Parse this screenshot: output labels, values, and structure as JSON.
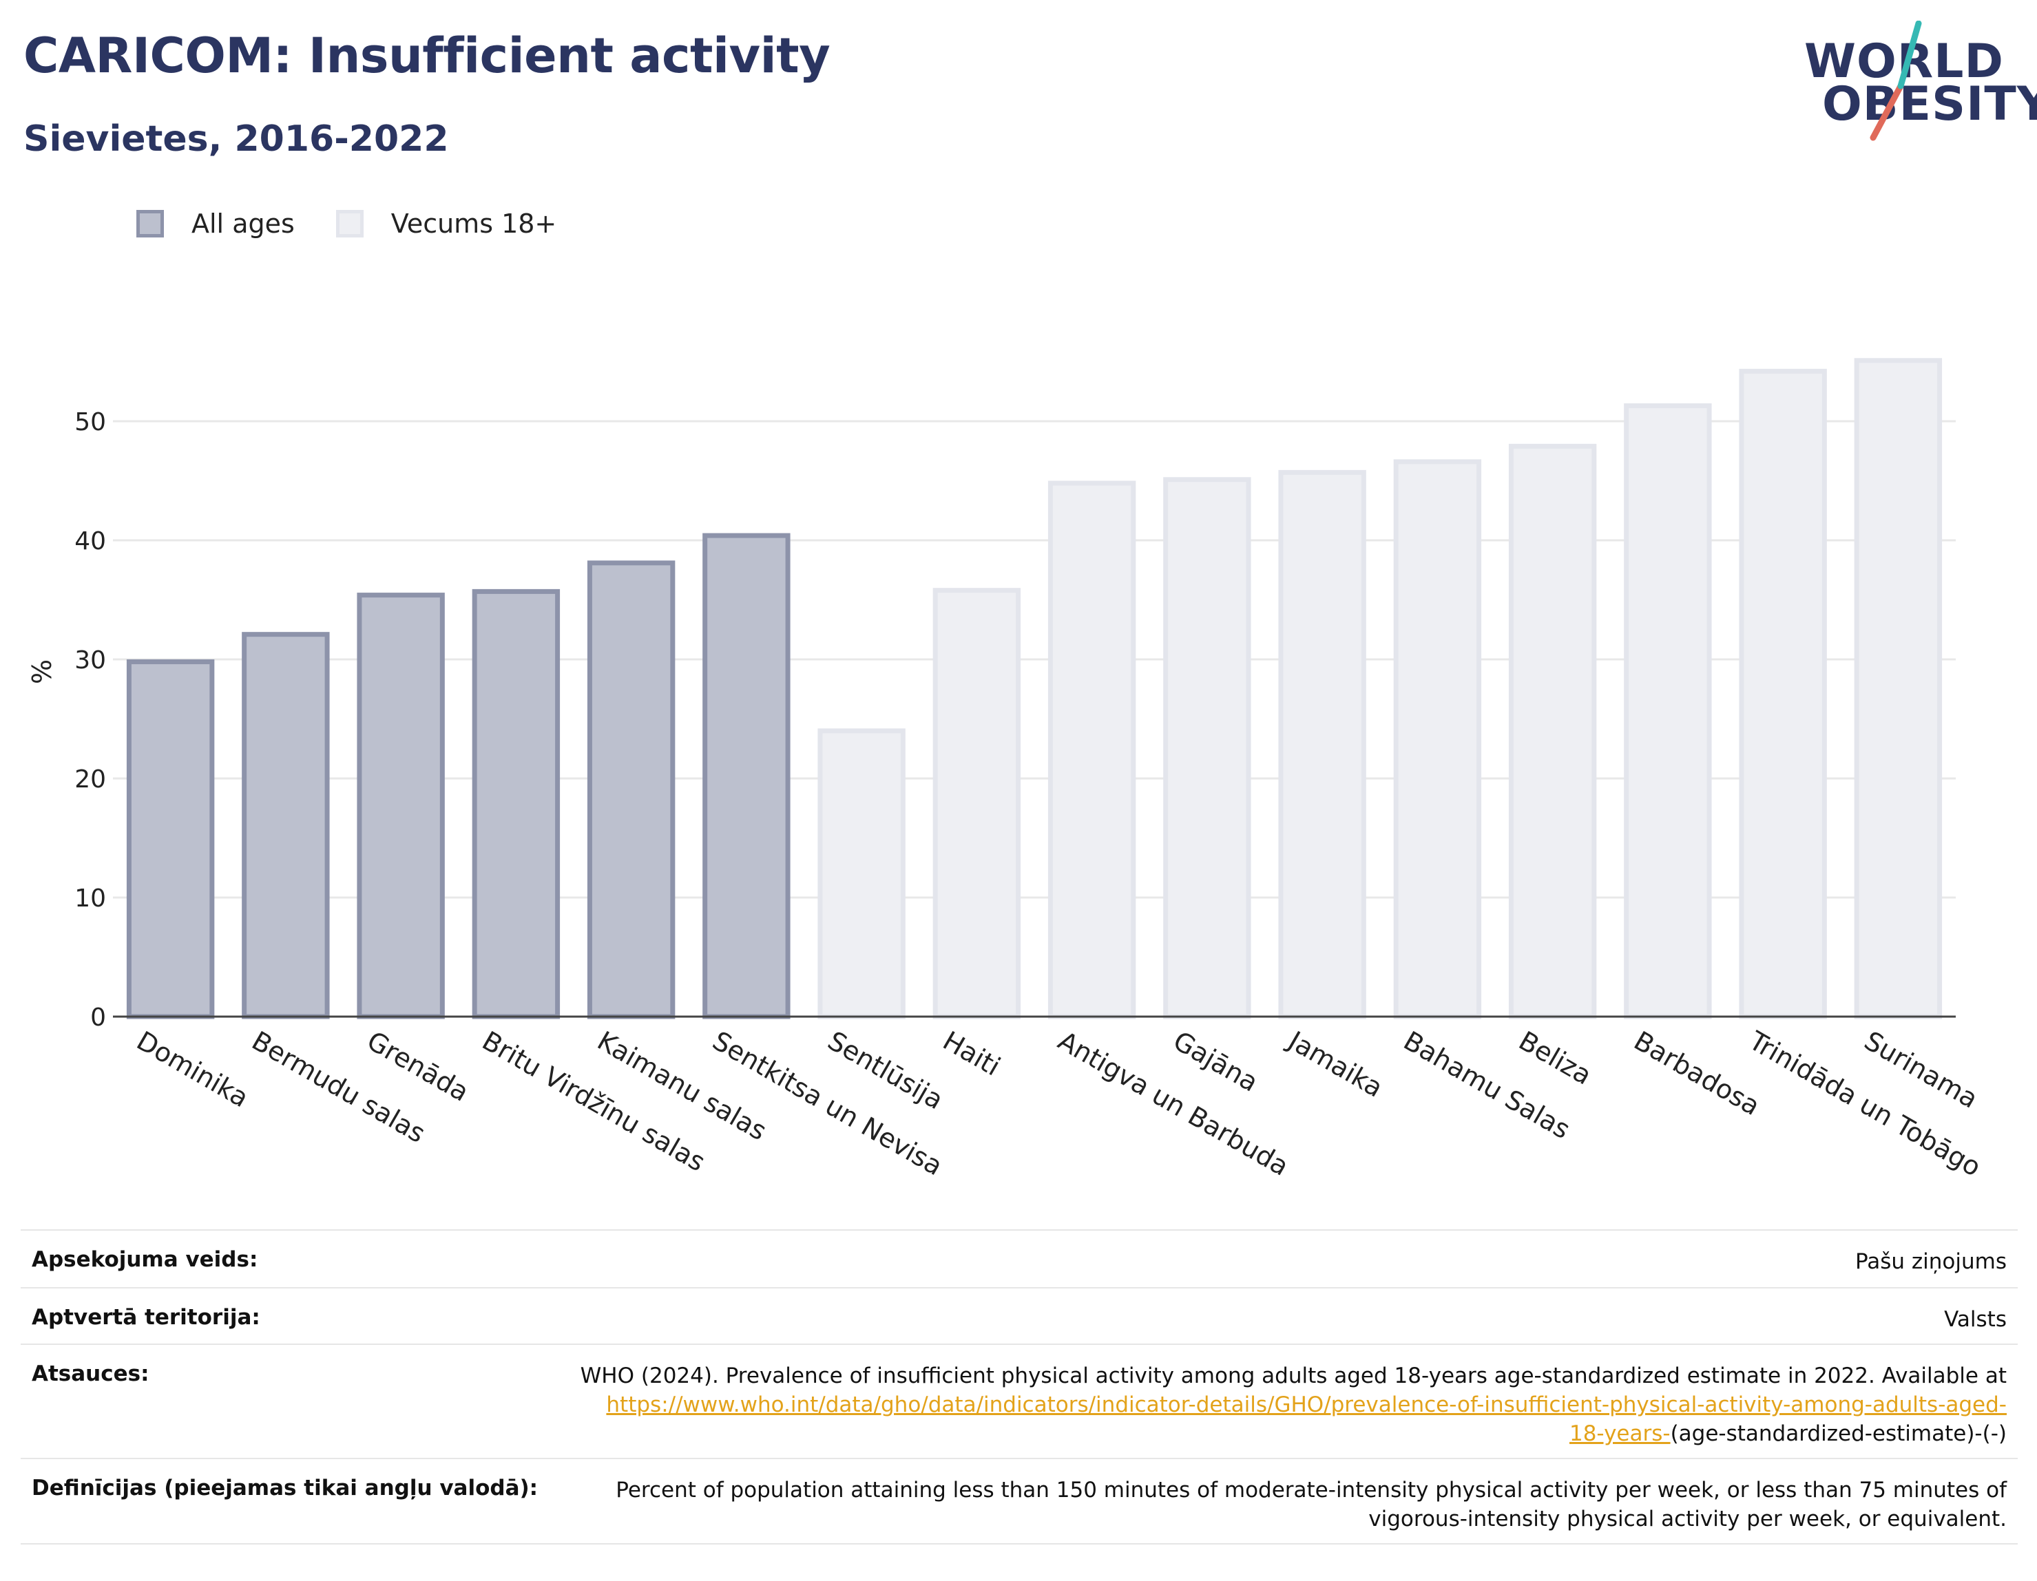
{
  "header": {
    "title": "CARICOM: Insufficient activity",
    "subtitle": "Sievietes, 2016-2022"
  },
  "logo": {
    "line1": "WORLD",
    "line2": "OBESITY"
  },
  "legend": [
    {
      "label": "All ages",
      "color": "#bcc0ce"
    },
    {
      "label": "Vecums 18+",
      "color": "#eeeff3"
    }
  ],
  "chart_data": {
    "type": "bar",
    "title": "CARICOM: Insufficient activity",
    "subtitle": "Sievietes, 2016-2022",
    "xlabel": "",
    "ylabel": "%",
    "ylim": [
      0,
      57
    ],
    "yticks": [
      0,
      10,
      20,
      30,
      40,
      50
    ],
    "grid": true,
    "legend_position": "top-left",
    "categories": [
      "Dominika",
      "Bermudu salas",
      "Grenāda",
      "Britu Virdžīnu salas",
      "Kaimanu salas",
      "Sentkitsa un Nevisa",
      "Sentlūsija",
      "Haiti",
      "Antigva un Barbuda",
      "Gajāna",
      "Jamaika",
      "Bahamu Salas",
      "Beliza",
      "Barbadosa",
      "Trinidāda un Tobāgo",
      "Surinama"
    ],
    "values": [
      29.8,
      32.1,
      35.4,
      35.7,
      38.1,
      40.4,
      24.0,
      35.8,
      44.8,
      45.1,
      45.7,
      46.6,
      47.9,
      51.3,
      54.2,
      55.1
    ],
    "series_of_bar": [
      "All ages",
      "All ages",
      "All ages",
      "All ages",
      "All ages",
      "All ages",
      "Vecums 18+",
      "Vecums 18+",
      "Vecums 18+",
      "Vecums 18+",
      "Vecums 18+",
      "Vecums 18+",
      "Vecums 18+",
      "Vecums 18+",
      "Vecums 18+",
      "Vecums 18+"
    ],
    "colors": {
      "All ages": "#bcc0ce",
      "Vecums 18+": "#eeeff3"
    }
  },
  "info": {
    "survey_label": "Apsekojuma veids:",
    "survey_value": "Pašu ziņojums",
    "coverage_label": "Aptvertā teritorija:",
    "coverage_value": "Valsts",
    "refs_label": "Atsauces:",
    "refs_text": "WHO (2024). Prevalence of insufficient physical activity among adults aged 18-years age-standardized estimate in 2022. Available at",
    "refs_link_1": "https://www.who.int/data/gho/data/indicators/indicator-details/GHO/prevalence-of-insufficient-physical-activity-among-adults-aged-",
    "refs_link_2": "18-years-",
    "refs_suffix": "(age-standardized-estimate)-(-)",
    "def_label": "Definīcijas (pieejamas tikai angļu valodā):",
    "def_line1": "Percent of population attaining less than 150 minutes of moderate-intensity physical activity per week, or less than 75 minutes of",
    "def_line2": "vigorous-intensity physical activity per week, or equivalent."
  }
}
